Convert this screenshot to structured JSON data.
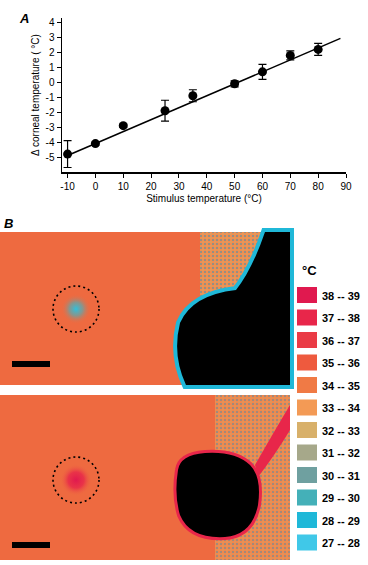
{
  "chart_data": {
    "type": "scatter",
    "annotations": [
      "A"
    ],
    "x_label": "Stimulus temperature (°C)",
    "y_label": "Δ corneal temperature ( °C)",
    "series": [
      {
        "type": "scatter",
        "marker": "circle",
        "color": "#000000",
        "x": [
          -10,
          0,
          10,
          25,
          35,
          50,
          60,
          70,
          80
        ],
        "values": [
          -4.8,
          -4.1,
          -2.9,
          -1.9,
          -0.9,
          -0.1,
          0.7,
          1.8,
          2.2
        ],
        "error": [
          0.9,
          0.1,
          0.1,
          0.7,
          0.4,
          0.2,
          0.5,
          0.3,
          0.4
        ]
      },
      {
        "type": "line",
        "line_style": "solid",
        "color": "#000000",
        "x": [
          -10,
          88
        ],
        "values": [
          -4.9,
          2.94
        ]
      }
    ],
    "xlim": [
      -12,
      90
    ],
    "ylim": [
      -6,
      4.3
    ],
    "xticks": [
      -10,
      0,
      10,
      20,
      30,
      40,
      50,
      60,
      70,
      80,
      90
    ],
    "yticks": [
      -5,
      -4,
      -3,
      -2,
      -1,
      0,
      1,
      2,
      3,
      4
    ],
    "grid": false
  },
  "thermal_images": {
    "label": "B",
    "unit": "°C",
    "scale": [
      {
        "label": "38 -- 39",
        "color": "#e0194f"
      },
      {
        "label": "37 -- 38",
        "color": "#e8264a"
      },
      {
        "label": "36 -- 37",
        "color": "#ea3b45"
      },
      {
        "label": "35 -- 36",
        "color": "#ee5a3e"
      },
      {
        "label": "34 -- 35",
        "color": "#f07a45"
      },
      {
        "label": "33 -- 34",
        "color": "#f39a55"
      },
      {
        "label": "32 -- 33",
        "color": "#d8b06a"
      },
      {
        "label": "31 -- 32",
        "color": "#a6a88a"
      },
      {
        "label": "30 -- 31",
        "color": "#6fa0a0"
      },
      {
        "label": "29 -- 30",
        "color": "#44b0b8"
      },
      {
        "label": "28 -- 29",
        "color": "#1fb8d8"
      },
      {
        "label": "27 -- 28",
        "color": "#40c8e8"
      }
    ]
  }
}
